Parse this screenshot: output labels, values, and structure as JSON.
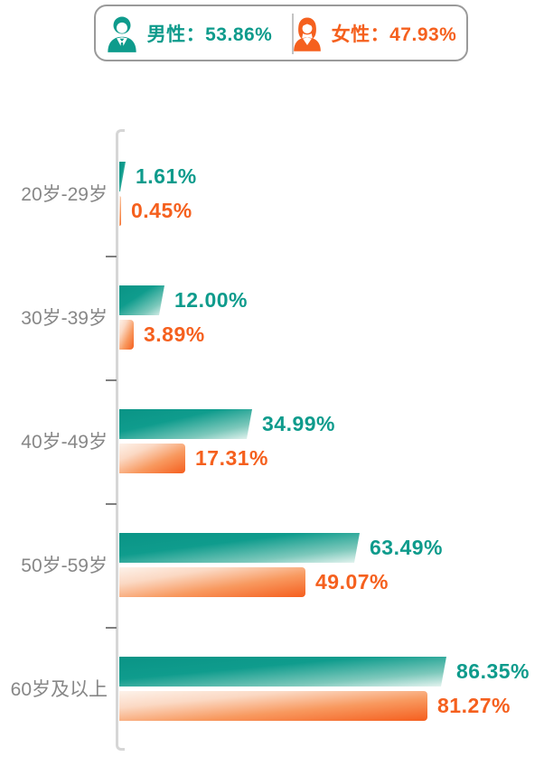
{
  "legend": {
    "male": {
      "label": "男性：",
      "value": "53.86%",
      "icon": "male-person-icon"
    },
    "female": {
      "label": "女性：",
      "value": "47.93%",
      "icon": "female-person-icon"
    }
  },
  "colors": {
    "male_teal": "#0e9b8c",
    "female_orange": "#f5601e",
    "category_gray": "#878787",
    "axis_gray": "#d6d6d6",
    "legend_border_gray": "#9a9a9a"
  },
  "chart_data": {
    "type": "bar",
    "orientation": "horizontal",
    "title": "",
    "xlabel": "",
    "ylabel": "",
    "xlim": [
      0,
      100
    ],
    "grid": false,
    "legend_position": "top",
    "value_suffix": "%",
    "categories": [
      "20岁-29岁",
      "30岁-39岁",
      "40岁-49岁",
      "50岁-59岁",
      "60岁及以上"
    ],
    "series": [
      {
        "name": "男性",
        "color": "#0e9b8c",
        "values": [
          1.61,
          12.0,
          34.99,
          63.49,
          86.35
        ],
        "labels": [
          "1.61%",
          "12.00%",
          "34.99%",
          "63.49%",
          "86.35%"
        ]
      },
      {
        "name": "女性",
        "color": "#f5601e",
        "values": [
          0.45,
          3.89,
          17.31,
          49.07,
          81.27
        ],
        "labels": [
          "0.45%",
          "3.89%",
          "17.31%",
          "49.07%",
          "81.27%"
        ]
      }
    ]
  }
}
